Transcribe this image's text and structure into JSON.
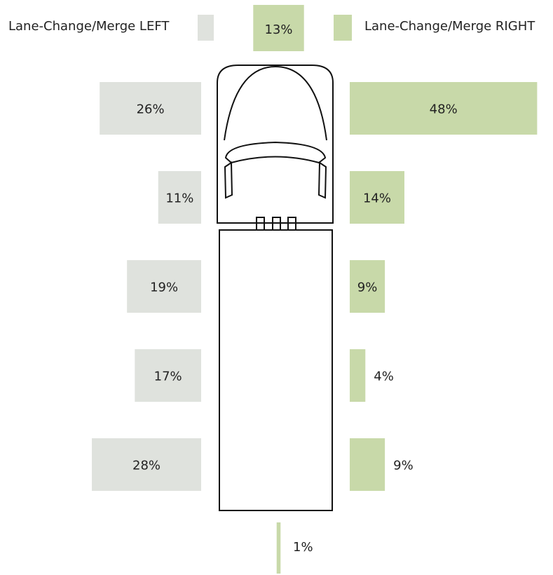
{
  "chart_data": {
    "type": "bar",
    "series": [
      {
        "name": "Lane-Change/Merge LEFT",
        "color": "#dfe2dd",
        "values": [
          26,
          11,
          19,
          17,
          28
        ],
        "value_labels": [
          "26%",
          "11%",
          "19%",
          "17%",
          "28%"
        ]
      },
      {
        "name": "Lane-Change/Merge RIGHT",
        "color": "#c8d9a9",
        "values": [
          48,
          14,
          9,
          4,
          9
        ],
        "value_labels": [
          "48%",
          "14%",
          "9%",
          "4%",
          "9%"
        ]
      }
    ],
    "front": {
      "value": 13,
      "value_label": "13%",
      "color": "#c8d9a9"
    },
    "rear": {
      "value": 1,
      "value_label": "1%",
      "color": "#c8d9a9"
    }
  }
}
